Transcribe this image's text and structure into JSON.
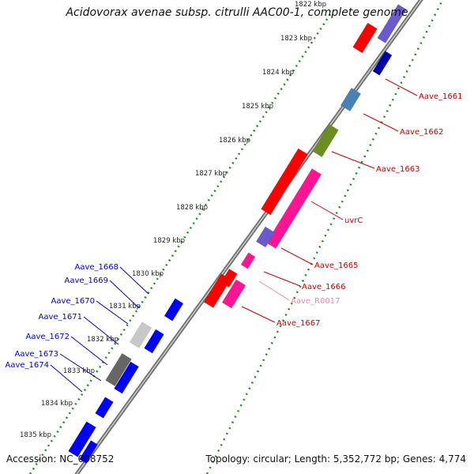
{
  "title": "Acidovorax avenae subsp. citrulli AAC00-1, complete genome",
  "footer": {
    "accession": "Accession: NC_008752",
    "summary": "Topology: circular; Length: 5,352,772 bp; Genes: 4,774"
  },
  "colors": {
    "backbone": "#8a8a8a",
    "tick": "#1f8a1f",
    "forward_label": "#cc0000",
    "reverse_label": "#0000cc",
    "rna_label": "#ee88aa"
  },
  "scale": [
    "1822 kbp",
    "1823 kbp",
    "1824 kbp",
    "1825 kbp",
    "1826 kbp",
    "1827 kbp",
    "1828 kbp",
    "1829 kbp",
    "1830 kbp",
    "1831 kbp",
    "1832 kbp",
    "1833 kbp",
    "1834 kbp",
    "1835 kbp"
  ],
  "forward_labels": [
    "Aave_1661",
    "Aave_1662",
    "Aave_1663",
    "uvrC",
    "Aave_1665",
    "Aave_1666",
    "Aave_R0017",
    "Aave_1667"
  ],
  "reverse_labels": [
    "Aave_1668",
    "Aave_1669",
    "Aave_1670",
    "Aave_1671",
    "Aave_1672",
    "Aave_1673",
    "Aave_1674"
  ]
}
